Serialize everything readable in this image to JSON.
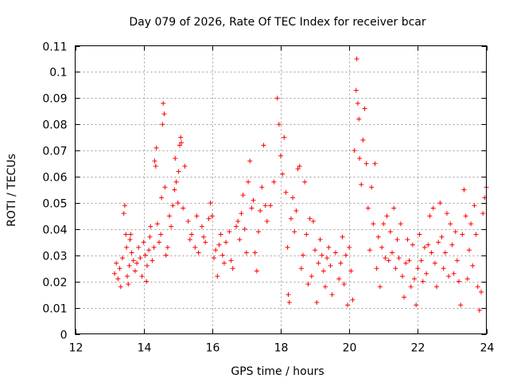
{
  "chart_data": {
    "type": "scatter",
    "title": "Day 079 of 2026, Rate Of TEC Index for receiver bcar",
    "xlabel": "GPS time / hours",
    "ylabel": "ROTI / TECUs",
    "xlim": [
      12,
      24
    ],
    "ylim": [
      0,
      0.11
    ],
    "xticks": [
      "12",
      "14",
      "16",
      "18",
      "20",
      "22",
      "24"
    ],
    "yticks": [
      "0",
      "0.01",
      "0.02",
      "0.03",
      "0.04",
      "0.05",
      "0.06",
      "0.07",
      "0.08",
      "0.09",
      "0.1",
      "0.11"
    ],
    "grid": true,
    "marker": "+",
    "color": "#ff0000",
    "series": [
      {
        "points": [
          [
            13.15,
            0.023
          ],
          [
            13.2,
            0.027
          ],
          [
            13.25,
            0.021
          ],
          [
            13.3,
            0.025
          ],
          [
            13.33,
            0.018
          ],
          [
            13.38,
            0.029
          ],
          [
            13.42,
            0.046
          ],
          [
            13.45,
            0.049
          ],
          [
            13.48,
            0.038
          ],
          [
            13.5,
            0.033
          ],
          [
            13.52,
            0.022
          ],
          [
            13.55,
            0.019
          ],
          [
            13.58,
            0.026
          ],
          [
            13.6,
            0.036
          ],
          [
            13.62,
            0.038
          ],
          [
            13.65,
            0.031
          ],
          [
            13.7,
            0.028
          ],
          [
            13.75,
            0.024
          ],
          [
            13.8,
            0.027
          ],
          [
            13.85,
            0.033
          ],
          [
            13.9,
            0.029
          ],
          [
            13.95,
            0.022
          ],
          [
            14.0,
            0.035
          ],
          [
            14.05,
            0.03
          ],
          [
            14.08,
            0.02
          ],
          [
            14.1,
            0.026
          ],
          [
            14.15,
            0.032
          ],
          [
            14.18,
            0.037
          ],
          [
            14.2,
            0.041
          ],
          [
            14.25,
            0.028
          ],
          [
            14.3,
            0.033
          ],
          [
            14.32,
            0.066
          ],
          [
            14.35,
            0.064
          ],
          [
            14.37,
            0.071
          ],
          [
            14.4,
            0.042
          ],
          [
            14.45,
            0.035
          ],
          [
            14.5,
            0.038
          ],
          [
            14.52,
            0.052
          ],
          [
            14.55,
            0.08
          ],
          [
            14.57,
            0.088
          ],
          [
            14.6,
            0.084
          ],
          [
            14.62,
            0.056
          ],
          [
            14.65,
            0.03
          ],
          [
            14.7,
            0.033
          ],
          [
            14.75,
            0.045
          ],
          [
            14.8,
            0.041
          ],
          [
            14.85,
            0.049
          ],
          [
            14.9,
            0.055
          ],
          [
            14.92,
            0.067
          ],
          [
            14.95,
            0.058
          ],
          [
            15.0,
            0.05
          ],
          [
            15.02,
            0.062
          ],
          [
            15.05,
            0.072
          ],
          [
            15.08,
            0.075
          ],
          [
            15.1,
            0.073
          ],
          [
            15.15,
            0.048
          ],
          [
            15.2,
            0.064
          ],
          [
            15.3,
            0.043
          ],
          [
            15.35,
            0.036
          ],
          [
            15.4,
            0.038
          ],
          [
            15.5,
            0.033
          ],
          [
            15.55,
            0.045
          ],
          [
            15.6,
            0.031
          ],
          [
            15.7,
            0.041
          ],
          [
            15.75,
            0.037
          ],
          [
            15.8,
            0.035
          ],
          [
            15.9,
            0.044
          ],
          [
            15.95,
            0.05
          ],
          [
            16.0,
            0.045
          ],
          [
            16.05,
            0.029
          ],
          [
            16.1,
            0.032
          ],
          [
            16.15,
            0.022
          ],
          [
            16.2,
            0.034
          ],
          [
            16.25,
            0.038
          ],
          [
            16.3,
            0.03
          ],
          [
            16.35,
            0.027
          ],
          [
            16.4,
            0.035
          ],
          [
            16.5,
            0.039
          ],
          [
            16.55,
            0.028
          ],
          [
            16.6,
            0.025
          ],
          [
            16.7,
            0.041
          ],
          [
            16.75,
            0.043
          ],
          [
            16.8,
            0.036
          ],
          [
            16.85,
            0.046
          ],
          [
            16.9,
            0.053
          ],
          [
            16.95,
            0.04
          ],
          [
            17.0,
            0.031
          ],
          [
            17.05,
            0.058
          ],
          [
            17.1,
            0.066
          ],
          [
            17.15,
            0.048
          ],
          [
            17.2,
            0.051
          ],
          [
            17.25,
            0.031
          ],
          [
            17.3,
            0.024
          ],
          [
            17.35,
            0.039
          ],
          [
            17.4,
            0.047
          ],
          [
            17.45,
            0.056
          ],
          [
            17.5,
            0.072
          ],
          [
            17.55,
            0.049
          ],
          [
            17.6,
            0.043
          ],
          [
            17.7,
            0.049
          ],
          [
            17.8,
            0.058
          ],
          [
            17.9,
            0.09
          ],
          [
            17.95,
            0.08
          ],
          [
            18.0,
            0.068
          ],
          [
            18.05,
            0.061
          ],
          [
            18.1,
            0.075
          ],
          [
            18.15,
            0.054
          ],
          [
            18.2,
            0.033
          ],
          [
            18.22,
            0.015
          ],
          [
            18.25,
            0.012
          ],
          [
            18.3,
            0.044
          ],
          [
            18.35,
            0.052
          ],
          [
            18.4,
            0.039
          ],
          [
            18.45,
            0.047
          ],
          [
            18.5,
            0.063
          ],
          [
            18.55,
            0.064
          ],
          [
            18.6,
            0.025
          ],
          [
            18.65,
            0.03
          ],
          [
            18.7,
            0.058
          ],
          [
            18.75,
            0.038
          ],
          [
            18.8,
            0.019
          ],
          [
            18.85,
            0.044
          ],
          [
            18.9,
            0.022
          ],
          [
            18.95,
            0.043
          ],
          [
            19.0,
            0.032
          ],
          [
            19.05,
            0.012
          ],
          [
            19.1,
            0.027
          ],
          [
            19.15,
            0.036
          ],
          [
            19.2,
            0.03
          ],
          [
            19.25,
            0.024
          ],
          [
            19.3,
            0.018
          ],
          [
            19.35,
            0.029
          ],
          [
            19.4,
            0.033
          ],
          [
            19.45,
            0.026
          ],
          [
            19.5,
            0.015
          ],
          [
            19.6,
            0.031
          ],
          [
            19.7,
            0.021
          ],
          [
            19.75,
            0.027
          ],
          [
            19.8,
            0.037
          ],
          [
            19.85,
            0.019
          ],
          [
            19.9,
            0.03
          ],
          [
            19.95,
            0.011
          ],
          [
            20.0,
            0.033
          ],
          [
            20.05,
            0.024
          ],
          [
            20.1,
            0.013
          ],
          [
            20.15,
            0.07
          ],
          [
            20.2,
            0.093
          ],
          [
            20.22,
            0.105
          ],
          [
            20.25,
            0.088
          ],
          [
            20.28,
            0.082
          ],
          [
            20.3,
            0.067
          ],
          [
            20.35,
            0.057
          ],
          [
            20.4,
            0.074
          ],
          [
            20.45,
            0.086
          ],
          [
            20.5,
            0.065
          ],
          [
            20.55,
            0.048
          ],
          [
            20.6,
            0.032
          ],
          [
            20.65,
            0.056
          ],
          [
            20.7,
            0.042
          ],
          [
            20.75,
            0.065
          ],
          [
            20.8,
            0.025
          ],
          [
            20.85,
            0.037
          ],
          [
            20.9,
            0.018
          ],
          [
            20.95,
            0.033
          ],
          [
            21.0,
            0.042
          ],
          [
            21.05,
            0.029
          ],
          [
            21.1,
            0.045
          ],
          [
            21.15,
            0.028
          ],
          [
            21.2,
            0.039
          ],
          [
            21.25,
            0.031
          ],
          [
            21.3,
            0.048
          ],
          [
            21.35,
            0.025
          ],
          [
            21.4,
            0.036
          ],
          [
            21.45,
            0.029
          ],
          [
            21.5,
            0.042
          ],
          [
            21.55,
            0.022
          ],
          [
            21.6,
            0.014
          ],
          [
            21.65,
            0.027
          ],
          [
            21.7,
            0.036
          ],
          [
            21.75,
            0.028
          ],
          [
            21.8,
            0.018
          ],
          [
            21.85,
            0.034
          ],
          [
            21.9,
            0.021
          ],
          [
            21.95,
            0.011
          ],
          [
            22.0,
            0.025
          ],
          [
            22.05,
            0.038
          ],
          [
            22.1,
            0.028
          ],
          [
            22.15,
            0.02
          ],
          [
            22.2,
            0.033
          ],
          [
            22.25,
            0.023
          ],
          [
            22.3,
            0.034
          ],
          [
            22.35,
            0.045
          ],
          [
            22.4,
            0.031
          ],
          [
            22.45,
            0.048
          ],
          [
            22.5,
            0.027
          ],
          [
            22.55,
            0.018
          ],
          [
            22.6,
            0.035
          ],
          [
            22.65,
            0.05
          ],
          [
            22.7,
            0.037
          ],
          [
            22.75,
            0.025
          ],
          [
            22.8,
            0.031
          ],
          [
            22.85,
            0.046
          ],
          [
            22.9,
            0.022
          ],
          [
            22.95,
            0.042
          ],
          [
            23.0,
            0.034
          ],
          [
            23.05,
            0.023
          ],
          [
            23.1,
            0.039
          ],
          [
            23.15,
            0.028
          ],
          [
            23.2,
            0.02
          ],
          [
            23.25,
            0.011
          ],
          [
            23.3,
            0.038
          ],
          [
            23.35,
            0.055
          ],
          [
            23.4,
            0.045
          ],
          [
            23.45,
            0.021
          ],
          [
            23.5,
            0.032
          ],
          [
            23.55,
            0.042
          ],
          [
            23.6,
            0.026
          ],
          [
            23.65,
            0.049
          ],
          [
            23.7,
            0.038
          ],
          [
            23.75,
            0.018
          ],
          [
            23.8,
            0.009
          ],
          [
            23.85,
            0.016
          ],
          [
            23.9,
            0.046
          ],
          [
            23.95,
            0.052
          ],
          [
            24.0,
            0.056
          ]
        ]
      }
    ]
  }
}
